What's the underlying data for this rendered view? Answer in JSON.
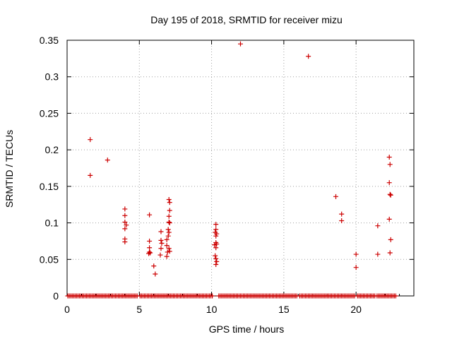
{
  "chart_data": {
    "type": "scatter",
    "title": "Day 195 of 2018, SRMTID for receiver mizu",
    "xlabel": "GPS time / hours",
    "ylabel": "SRMTID / TECUs",
    "xlim": [
      0,
      24
    ],
    "ylim": [
      0,
      0.35
    ],
    "xticks": [
      0,
      5,
      10,
      15,
      20
    ],
    "yticks": [
      0,
      0.05,
      0.1,
      0.15,
      0.2,
      0.25,
      0.3,
      0.35
    ],
    "ytick_labels": [
      "0",
      "0.05",
      "0.1",
      "0.15",
      "0.2",
      "0.25",
      "0.3",
      "0.35"
    ],
    "grid": true,
    "marker": "+",
    "series_color": "#cc0000",
    "series": [
      {
        "name": "SRMTID",
        "points": [
          [
            1.6,
            0.214
          ],
          [
            1.6,
            0.165
          ],
          [
            2.8,
            0.186
          ],
          [
            4.0,
            0.119
          ],
          [
            4.0,
            0.11
          ],
          [
            4.0,
            0.101
          ],
          [
            4.0,
            0.092
          ],
          [
            4.1,
            0.097
          ],
          [
            4.0,
            0.078
          ],
          [
            4.0,
            0.074
          ],
          [
            5.7,
            0.111
          ],
          [
            5.7,
            0.075
          ],
          [
            5.7,
            0.066
          ],
          [
            5.7,
            0.06
          ],
          [
            5.65,
            0.058
          ],
          [
            5.75,
            0.059
          ],
          [
            6.0,
            0.041
          ],
          [
            6.1,
            0.03
          ],
          [
            6.5,
            0.088
          ],
          [
            6.5,
            0.076
          ],
          [
            6.55,
            0.072
          ],
          [
            6.5,
            0.065
          ],
          [
            6.45,
            0.056
          ],
          [
            6.9,
            0.077
          ],
          [
            6.9,
            0.069
          ],
          [
            6.95,
            0.06
          ],
          [
            6.9,
            0.054
          ],
          [
            7.05,
            0.132
          ],
          [
            7.1,
            0.128
          ],
          [
            7.1,
            0.117
          ],
          [
            7.05,
            0.109
          ],
          [
            7.05,
            0.101
          ],
          [
            7.1,
            0.1
          ],
          [
            7.0,
            0.091
          ],
          [
            7.05,
            0.087
          ],
          [
            7.0,
            0.082
          ],
          [
            7.05,
            0.065
          ],
          [
            7.1,
            0.061
          ],
          [
            10.3,
            0.098
          ],
          [
            10.3,
            0.091
          ],
          [
            10.25,
            0.087
          ],
          [
            10.35,
            0.085
          ],
          [
            10.3,
            0.082
          ],
          [
            10.3,
            0.073
          ],
          [
            10.35,
            0.071
          ],
          [
            10.2,
            0.07
          ],
          [
            10.3,
            0.066
          ],
          [
            10.25,
            0.055
          ],
          [
            10.3,
            0.051
          ],
          [
            10.35,
            0.047
          ],
          [
            10.3,
            0.043
          ],
          [
            12.0,
            0.345
          ],
          [
            16.7,
            0.328
          ],
          [
            18.6,
            0.136
          ],
          [
            19.0,
            0.112
          ],
          [
            19.0,
            0.103
          ],
          [
            20.0,
            0.057
          ],
          [
            20.0,
            0.039
          ],
          [
            21.5,
            0.096
          ],
          [
            21.5,
            0.057
          ],
          [
            22.3,
            0.19
          ],
          [
            22.35,
            0.18
          ],
          [
            22.3,
            0.155
          ],
          [
            22.35,
            0.139
          ],
          [
            22.4,
            0.138
          ],
          [
            22.3,
            0.105
          ],
          [
            22.4,
            0.077
          ],
          [
            22.35,
            0.059
          ]
        ],
        "zero_segments": [
          [
            0.05,
            4.85
          ],
          [
            5.05,
            10.1
          ],
          [
            10.5,
            15.95
          ],
          [
            16.1,
            17.5
          ],
          [
            17.6,
            18.7
          ],
          [
            18.8,
            19.9
          ],
          [
            20.1,
            21.3
          ],
          [
            21.45,
            22.75
          ]
        ],
        "zero_step_hours": 0.1
      }
    ]
  }
}
